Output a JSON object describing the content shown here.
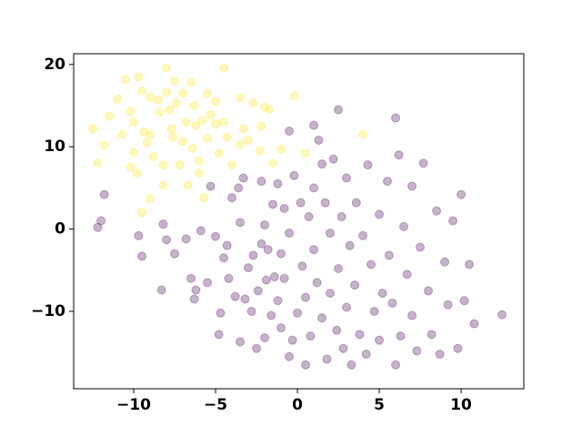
{
  "chart_data": {
    "type": "scatter",
    "alpha": 0.3,
    "xlim": [
      -13.67,
      13.83
    ],
    "ylim": [
      -19.4,
      21.3
    ],
    "xticks": [
      {
        "value": -10,
        "label": "−10"
      },
      {
        "value": -5,
        "label": "−5"
      },
      0,
      5,
      10
    ],
    "yticks": [
      {
        "value": -10,
        "label": "−10"
      },
      0,
      10,
      20
    ],
    "series": [
      {
        "color": "#fde725",
        "x": [
          -12.5,
          -12.2,
          -11.8,
          -11.5,
          -11,
          -10.7,
          -10.5,
          -10.2,
          -10,
          -10,
          -9.8,
          -9.7,
          -9.5,
          -9.4,
          -9.2,
          -9,
          -9,
          -8.8,
          -8.5,
          -8.4,
          -8.2,
          -8,
          -8,
          -7.8,
          -7.7,
          -7.6,
          -7.5,
          -7.4,
          -7.2,
          -7,
          -7,
          -6.8,
          -6.7,
          -6.5,
          -6.4,
          -6.3,
          -6.2,
          -6,
          -6,
          -5.8,
          -5.7,
          -5.5,
          -5.5,
          -5.3,
          -5,
          -5,
          -4.8,
          -4.5,
          -4.5,
          -4.3,
          -4,
          -3.5,
          -3.5,
          -3.3,
          -3,
          -2.7,
          -2.2,
          -2,
          -2.3,
          -1.7,
          -1.5,
          -1,
          -0.2,
          0.5,
          4,
          -9.5,
          -9,
          -8.2,
          -10.2
        ],
        "y": [
          12.2,
          8,
          10.2,
          13.7,
          15.8,
          11.5,
          18.2,
          14.3,
          13,
          9.3,
          6.8,
          18.5,
          16.8,
          11.8,
          10.5,
          16,
          11.5,
          8.8,
          15.7,
          14.2,
          7.8,
          19.6,
          16.6,
          14.5,
          12.2,
          11.2,
          18,
          15.3,
          7.8,
          16.5,
          10.6,
          13,
          5.3,
          17.8,
          9.8,
          15,
          12.6,
          6.8,
          8.3,
          13.2,
          3.8,
          11,
          16.5,
          13.9,
          12.8,
          15.5,
          9.2,
          19.5,
          13,
          11.2,
          7.8,
          10.3,
          16,
          12.2,
          10.8,
          15.3,
          12.5,
          14.8,
          9.5,
          14.5,
          8,
          9.7,
          16.2,
          9.2,
          11.5,
          2,
          3.7,
          5.3,
          7.5
        ]
      },
      {
        "color": "#440154",
        "x": [
          -12.2,
          -12,
          -11.8,
          -9.7,
          -9.5,
          -8.3,
          -8.2,
          -8,
          -7.5,
          -6.8,
          -6.5,
          -6.3,
          -6.2,
          -5.9,
          -5.5,
          -5.3,
          -5,
          -4.8,
          -4.7,
          -4.5,
          -4.3,
          -4.2,
          -4,
          -3.8,
          -3.6,
          -3.5,
          -3.5,
          -3.3,
          -3.2,
          -3,
          -2.8,
          -2.7,
          -2.5,
          -2.4,
          -2.2,
          -2.2,
          -2,
          -2,
          -1.9,
          -1.8,
          -1.6,
          -1.5,
          -1.4,
          -1.2,
          -1.2,
          -1,
          -1,
          -0.8,
          -0.8,
          -0.5,
          -0.5,
          -0.3,
          -0.2,
          0,
          0.2,
          0.3,
          0.5,
          0.5,
          0.7,
          0.8,
          1,
          1,
          1.2,
          1.3,
          1.5,
          1.7,
          1.8,
          2,
          2,
          2.2,
          2.4,
          2.5,
          2.7,
          2.8,
          3,
          3,
          3.2,
          3.3,
          3.5,
          3.6,
          3.8,
          4,
          4.2,
          4.3,
          4.5,
          4.7,
          5,
          5,
          5.2,
          5.5,
          5.6,
          5.8,
          6,
          6.2,
          6.3,
          6.5,
          6.7,
          7,
          7,
          7.3,
          7.5,
          7.7,
          8,
          8.2,
          8.5,
          8.7,
          9,
          9.2,
          9.5,
          9.8,
          10,
          10.2,
          10.5,
          10.8,
          12.5,
          1.5,
          2.5,
          1,
          -0.5,
          6
        ],
        "y": [
          0.2,
          1,
          4.2,
          -0.8,
          -3.3,
          -7.4,
          0.6,
          -1.3,
          -3,
          -1.2,
          -6,
          -8.5,
          -7.4,
          -0.2,
          -6.5,
          5.2,
          -0.9,
          -12.8,
          -10.2,
          -3.5,
          -2,
          -6,
          3.8,
          -8.2,
          5,
          -13.7,
          0.8,
          6.2,
          -8.5,
          -4.7,
          -10,
          -3.2,
          -14.5,
          -7.5,
          5.8,
          -1.8,
          -13.2,
          0.5,
          -6.2,
          -2.5,
          -10.5,
          3,
          -5.8,
          -8.7,
          5.5,
          -12,
          -3,
          -6,
          2.5,
          -15.5,
          -0.5,
          -13.5,
          6.5,
          -10.2,
          3.2,
          -4.5,
          -8.3,
          -16.5,
          1.5,
          -13,
          5,
          -2.5,
          -6.5,
          10.8,
          -10.8,
          3.2,
          -15.8,
          -7.8,
          -0.5,
          8.5,
          -12.3,
          -4.8,
          1.5,
          -14.5,
          6.2,
          -9.5,
          -2,
          -16.5,
          -6.8,
          3.2,
          -12.8,
          -0.8,
          -15.2,
          7.8,
          -4.3,
          -10,
          1.8,
          -13.5,
          -7.8,
          5.8,
          -3.2,
          -9,
          -16.5,
          9,
          -13,
          0.3,
          -5.5,
          5.2,
          -10.5,
          -14.8,
          -2.2,
          8,
          -7.5,
          -12.8,
          2.2,
          -15.2,
          -4,
          -9.2,
          1,
          -14.5,
          4.2,
          -8.7,
          -4.3,
          -11.5,
          -10.4,
          7.9,
          14.5,
          12.6,
          11.9,
          13.5
        ]
      }
    ]
  }
}
